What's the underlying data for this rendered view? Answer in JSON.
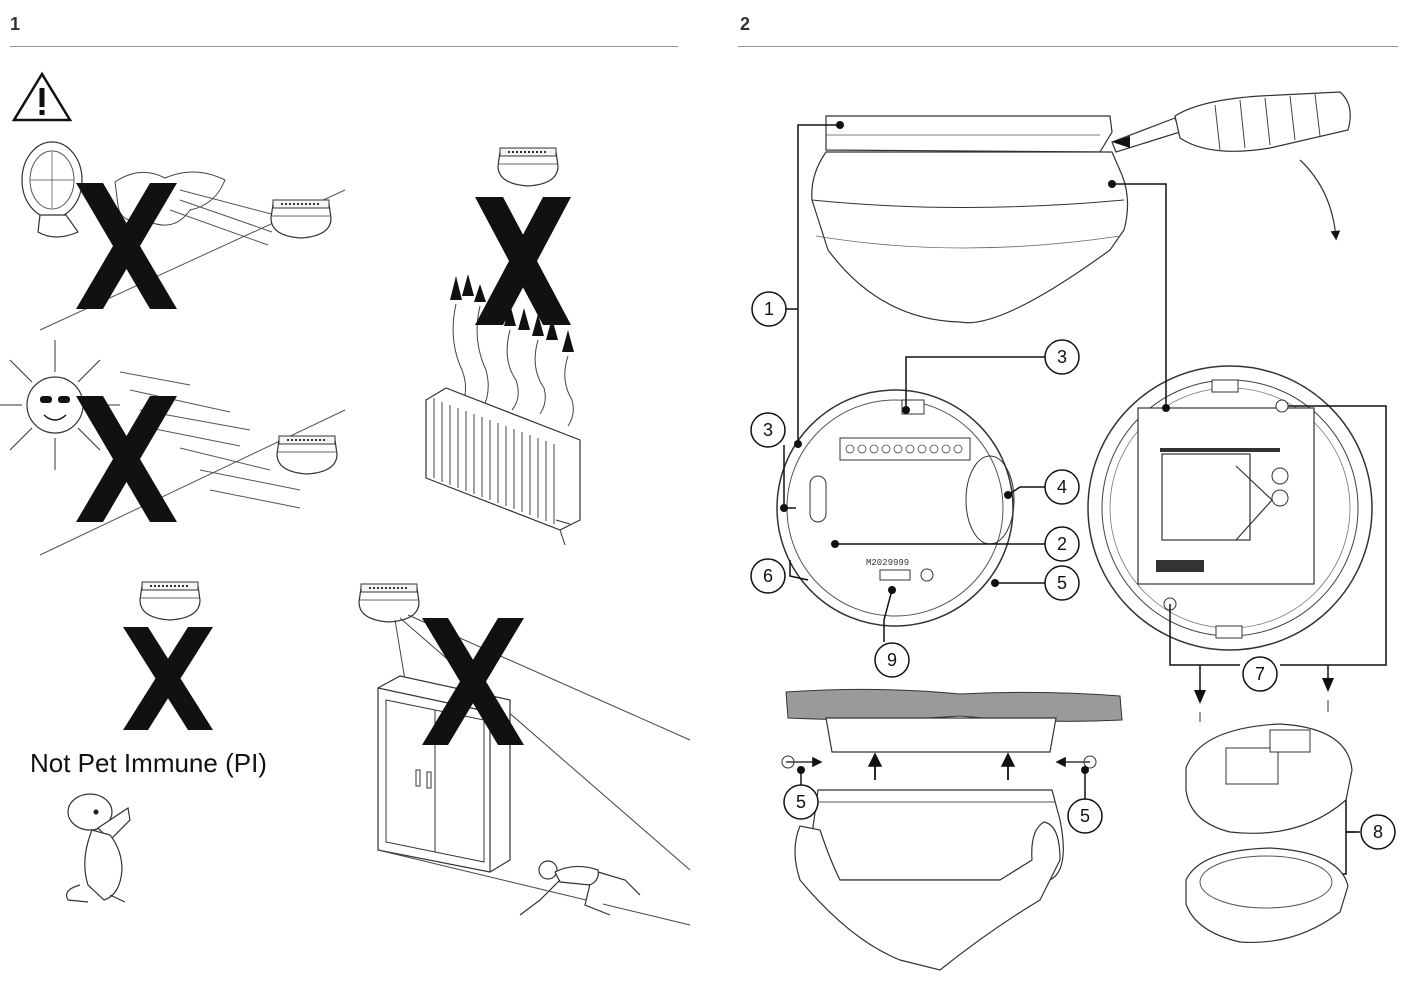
{
  "panel1": {
    "number": "1",
    "caption": "Not Pet Immune (PI)"
  },
  "panel2": {
    "number": "2",
    "serial_label": "M2029999",
    "callouts": [
      {
        "id": "c1",
        "label": "1"
      },
      {
        "id": "c3a",
        "label": "3"
      },
      {
        "id": "c3b",
        "label": "3"
      },
      {
        "id": "c4",
        "label": "4"
      },
      {
        "id": "c2",
        "label": "2"
      },
      {
        "id": "c6",
        "label": "6"
      },
      {
        "id": "c5a",
        "label": "5"
      },
      {
        "id": "c9",
        "label": "9"
      },
      {
        "id": "c7",
        "label": "7"
      },
      {
        "id": "c5b",
        "label": "5"
      },
      {
        "id": "c5c",
        "label": "5"
      },
      {
        "id": "c8",
        "label": "8"
      }
    ]
  },
  "icons": {
    "warning": "warning-triangle-icon"
  }
}
